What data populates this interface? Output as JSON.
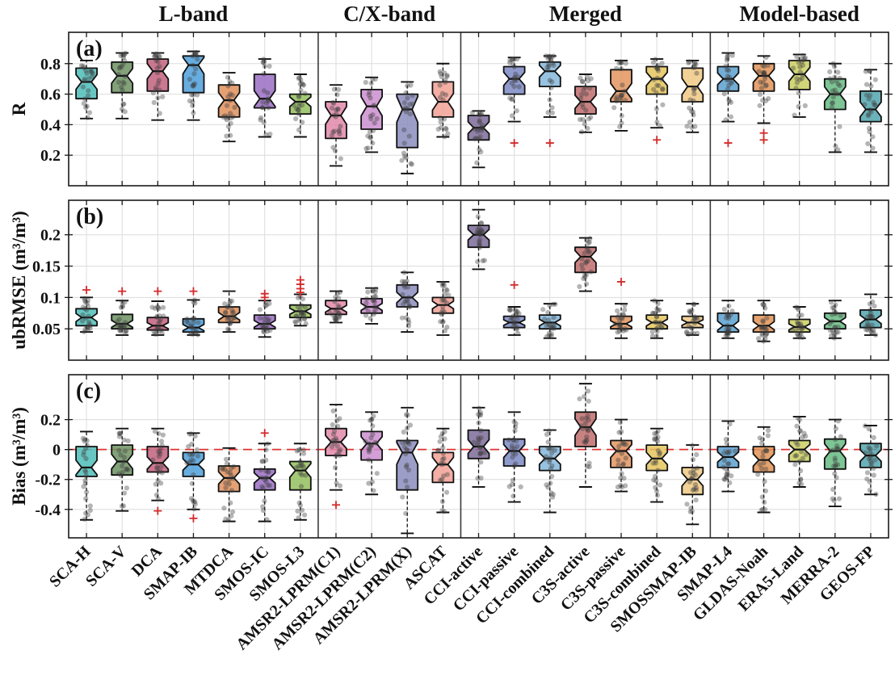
{
  "figure": {
    "kind": "notched-boxplot-figure",
    "background": "#ffffff"
  },
  "chart_data": {
    "type": "boxplot",
    "categories": [
      "SCA-H",
      "SCA-V",
      "DCA",
      "SMAP-IB",
      "MTDCA",
      "SMOS-IC",
      "SMOS-L3",
      "AMSR2-LPRM(C1)",
      "AMSR2-LPRM(C2)",
      "AMSR2-LPRM(X)",
      "ASCAT",
      "CCI-active",
      "CCI-passive",
      "CCI-combined",
      "C3S-active",
      "C3S-passive",
      "C3S-combined",
      "SMOSSMAP-IB",
      "SMAP-L4",
      "GLDAS-Noah",
      "ERA5-Land",
      "MERRA-2",
      "GEOS-FP"
    ],
    "groups": [
      {
        "label": "L-band",
        "start": 0,
        "end": 7
      },
      {
        "label": "C/X-band",
        "start": 7,
        "end": 11
      },
      {
        "label": "Merged",
        "start": 11,
        "end": 18
      },
      {
        "label": "Model-based",
        "start": 18,
        "end": 23
      }
    ],
    "colors": [
      "#4fbdb8",
      "#6d9263",
      "#c2607e",
      "#4d9fdb",
      "#e0915c",
      "#9a6fc4",
      "#94c05e",
      "#e288a8",
      "#cb8ecf",
      "#8c8dbd",
      "#f2a195",
      "#7d6b99",
      "#7d89c4",
      "#85b7da",
      "#c06c6c",
      "#e2945f",
      "#e5c55e",
      "#eec984",
      "#5ba0d0",
      "#e29356",
      "#cacf62",
      "#66bb82",
      "#52a5ae"
    ],
    "scatter_color": "#3c3c3c",
    "outlier_color": "#d42a2a",
    "zero_line_color": "#e03030",
    "legend": "none",
    "grid": "on",
    "panels": [
      {
        "label": "(a)",
        "ylabel": "R",
        "ylim": [
          0,
          1.005
        ],
        "yticks": [
          0.2,
          0.4,
          0.6,
          0.8
        ],
        "ytick_labels": [
          "0.2",
          "0.4",
          "0.6",
          "0.8"
        ],
        "zero_line": false,
        "stats": [
          [
            0.44,
            0.57,
            0.68,
            0.77,
            0.82
          ],
          [
            0.44,
            0.61,
            0.72,
            0.81,
            0.87
          ],
          [
            0.43,
            0.62,
            0.75,
            0.83,
            0.87
          ],
          [
            0.43,
            0.61,
            0.79,
            0.85,
            0.88
          ],
          [
            0.29,
            0.45,
            0.56,
            0.66,
            0.74
          ],
          [
            0.32,
            0.51,
            0.57,
            0.73,
            0.83
          ],
          [
            0.32,
            0.47,
            0.55,
            0.6,
            0.73
          ],
          [
            0.13,
            0.31,
            0.46,
            0.55,
            0.66
          ],
          [
            0.22,
            0.37,
            0.52,
            0.63,
            0.71
          ],
          [
            0.08,
            0.25,
            0.5,
            0.6,
            0.68
          ],
          [
            0.32,
            0.45,
            0.55,
            0.68,
            0.8
          ],
          [
            0.12,
            0.3,
            0.38,
            0.46,
            0.49
          ],
          [
            0.42,
            0.6,
            0.7,
            0.78,
            0.84
          ],
          [
            0.45,
            0.65,
            0.75,
            0.81,
            0.85
          ],
          [
            0.35,
            0.47,
            0.55,
            0.65,
            0.73
          ],
          [
            0.36,
            0.55,
            0.62,
            0.76,
            0.82
          ],
          [
            0.38,
            0.6,
            0.7,
            0.78,
            0.83
          ],
          [
            0.35,
            0.55,
            0.65,
            0.77,
            0.82
          ],
          [
            0.42,
            0.62,
            0.7,
            0.78,
            0.87
          ],
          [
            0.41,
            0.62,
            0.72,
            0.8,
            0.85
          ],
          [
            0.45,
            0.63,
            0.73,
            0.82,
            0.86
          ],
          [
            0.22,
            0.5,
            0.6,
            0.7,
            0.8
          ],
          [
            0.22,
            0.42,
            0.5,
            0.62,
            0.76
          ]
        ],
        "outliers": [
          [],
          [],
          [],
          [],
          [],
          [],
          [],
          [],
          [],
          [],
          [],
          [],
          [
            0.28
          ],
          [
            0.28
          ],
          [],
          [],
          [
            0.3
          ],
          [],
          [
            0.28
          ],
          [
            0.345,
            0.3
          ],
          [],
          [],
          []
        ]
      },
      {
        "label": "(b)",
        "ylabel": "ubRMSE (m³/m³)",
        "ylim": [
          0,
          0.255
        ],
        "yticks": [
          0.05,
          0.1,
          0.15,
          0.2
        ],
        "ytick_labels": [
          "0.05",
          "0.1",
          "0.15",
          "0.2"
        ],
        "zero_line": false,
        "stats": [
          [
            0.045,
            0.055,
            0.068,
            0.082,
            0.1
          ],
          [
            0.04,
            0.05,
            0.058,
            0.073,
            0.095
          ],
          [
            0.04,
            0.048,
            0.055,
            0.068,
            0.094
          ],
          [
            0.04,
            0.045,
            0.052,
            0.066,
            0.096
          ],
          [
            0.045,
            0.06,
            0.07,
            0.085,
            0.11
          ],
          [
            0.037,
            0.05,
            0.058,
            0.072,
            0.095
          ],
          [
            0.055,
            0.068,
            0.078,
            0.088,
            0.105
          ],
          [
            0.06,
            0.073,
            0.082,
            0.095,
            0.11
          ],
          [
            0.058,
            0.075,
            0.085,
            0.098,
            0.115
          ],
          [
            0.045,
            0.085,
            0.1,
            0.12,
            0.14
          ],
          [
            0.04,
            0.075,
            0.088,
            0.1,
            0.125
          ],
          [
            0.145,
            0.18,
            0.2,
            0.215,
            0.24
          ],
          [
            0.04,
            0.052,
            0.06,
            0.07,
            0.085
          ],
          [
            0.035,
            0.05,
            0.06,
            0.072,
            0.09
          ],
          [
            0.11,
            0.14,
            0.165,
            0.18,
            0.195
          ],
          [
            0.035,
            0.05,
            0.058,
            0.07,
            0.09
          ],
          [
            0.035,
            0.05,
            0.06,
            0.072,
            0.095
          ],
          [
            0.04,
            0.052,
            0.06,
            0.07,
            0.09
          ],
          [
            0.035,
            0.045,
            0.055,
            0.075,
            0.095
          ],
          [
            0.03,
            0.045,
            0.055,
            0.072,
            0.095
          ],
          [
            0.035,
            0.045,
            0.053,
            0.065,
            0.085
          ],
          [
            0.035,
            0.05,
            0.062,
            0.075,
            0.095
          ],
          [
            0.04,
            0.052,
            0.065,
            0.08,
            0.105
          ]
        ],
        "outliers": [
          [
            0.112
          ],
          [
            0.11
          ],
          [
            0.11
          ],
          [
            0.11
          ],
          [],
          [
            0.1,
            0.106
          ],
          [
            0.108,
            0.114,
            0.121,
            0.128
          ],
          [],
          [],
          [],
          [],
          [],
          [
            0.12
          ],
          [],
          [],
          [
            0.125
          ],
          [],
          [],
          [],
          [],
          [],
          [],
          []
        ]
      },
      {
        "label": "(c)",
        "ylabel": "Bias (m³/m³)",
        "ylim": [
          -0.59,
          0.5
        ],
        "yticks": [
          -0.4,
          -0.2,
          0,
          0.2
        ],
        "ytick_labels": [
          "-0.4",
          "-0.2",
          "0",
          "0.2"
        ],
        "zero_line": true,
        "stats": [
          [
            -0.47,
            -0.18,
            -0.12,
            0.02,
            0.12
          ],
          [
            -0.41,
            -0.17,
            -0.08,
            0.03,
            0.14
          ],
          [
            -0.34,
            -0.15,
            -0.09,
            0.02,
            0.14
          ],
          [
            -0.4,
            -0.18,
            -0.1,
            -0.02,
            0.11
          ],
          [
            -0.48,
            -0.28,
            -0.19,
            -0.11,
            0.01
          ],
          [
            -0.48,
            -0.27,
            -0.19,
            -0.13,
            0.04
          ],
          [
            -0.47,
            -0.27,
            -0.14,
            -0.08,
            0.04
          ],
          [
            -0.27,
            -0.04,
            0.05,
            0.14,
            0.3
          ],
          [
            -0.3,
            -0.07,
            0.04,
            0.12,
            0.25
          ],
          [
            -0.56,
            -0.27,
            -0.02,
            0.06,
            0.28
          ],
          [
            -0.42,
            -0.22,
            -0.1,
            -0.02,
            0.14
          ],
          [
            -0.25,
            -0.06,
            0.02,
            0.13,
            0.28
          ],
          [
            -0.35,
            -0.11,
            -0.01,
            0.07,
            0.25
          ],
          [
            -0.42,
            -0.14,
            -0.06,
            0.02,
            0.13
          ],
          [
            -0.25,
            0.02,
            0.15,
            0.25,
            0.44
          ],
          [
            -0.28,
            -0.12,
            -0.01,
            0.06,
            0.2
          ],
          [
            -0.35,
            -0.14,
            -0.06,
            0.03,
            0.14
          ],
          [
            -0.5,
            -0.3,
            -0.2,
            -0.12,
            0.03
          ],
          [
            -0.28,
            -0.12,
            -0.05,
            0.02,
            0.19
          ],
          [
            -0.42,
            -0.15,
            -0.07,
            0.02,
            0.15
          ],
          [
            -0.25,
            -0.08,
            0.0,
            0.06,
            0.22
          ],
          [
            -0.38,
            -0.13,
            -0.01,
            0.07,
            0.2
          ],
          [
            -0.3,
            -0.12,
            -0.04,
            0.04,
            0.16
          ]
        ],
        "outliers": [
          [],
          [],
          [
            -0.41
          ],
          [
            -0.46
          ],
          [],
          [
            0.11
          ],
          [],
          [
            -0.37
          ],
          [],
          [],
          [],
          [],
          [],
          [],
          [],
          [],
          [],
          [],
          [],
          [],
          [],
          [],
          []
        ]
      }
    ]
  }
}
